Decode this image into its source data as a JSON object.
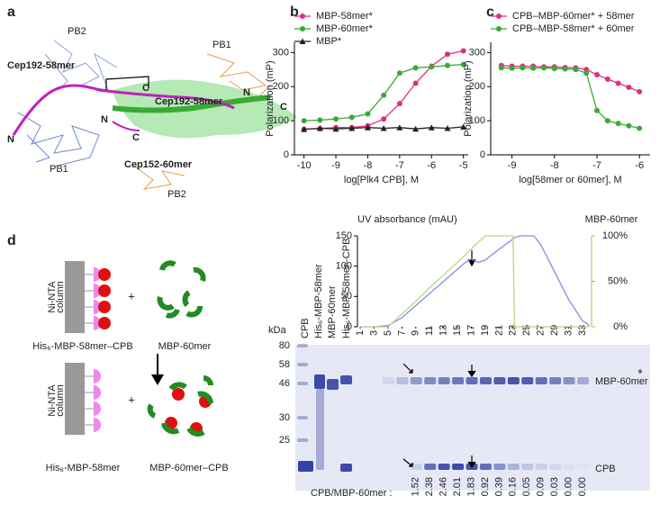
{
  "panel_labels": [
    "a",
    "b",
    "c",
    "d"
  ],
  "structure": {
    "labels": [
      "PB2",
      "PB1",
      "Cep192-58mer",
      "C",
      "Cep192-58mer",
      "N",
      "C",
      "N",
      "N",
      "C",
      "PB1",
      "Cep152-60mer",
      "PB2"
    ]
  },
  "chart_data": [
    {
      "type": "line",
      "xlabel": "log[Plk4 CPB], M",
      "ylabel": "Polarization (mP)",
      "x": [
        -10,
        -9.5,
        -9,
        -8.5,
        -8,
        -7.5,
        -7,
        -6.5,
        -6,
        -5.5,
        -5
      ],
      "xlim": [
        -10.3,
        -4.85
      ],
      "xticks": [
        -10,
        -9,
        -8,
        -7,
        -6,
        -5
      ],
      "ylim": [
        0,
        330
      ],
      "yticks": [
        0,
        100,
        200,
        300
      ],
      "legend": "above",
      "series": [
        {
          "name": "MBP-58mer*",
          "color": "#e0307f",
          "marker": "circle",
          "values": [
            75,
            77,
            80,
            80,
            85,
            105,
            150,
            210,
            260,
            295,
            305
          ]
        },
        {
          "name": "MBP-60mer*",
          "color": "#3aaa35",
          "marker": "circle",
          "values": [
            100,
            102,
            105,
            110,
            120,
            175,
            240,
            255,
            258,
            262,
            265
          ]
        },
        {
          "name": "MBP*",
          "color": "#222222",
          "marker": "triangle",
          "values": [
            75,
            78,
            76,
            78,
            80,
            78,
            80,
            76,
            80,
            78,
            82
          ]
        }
      ]
    },
    {
      "type": "line",
      "xlabel": "log[58mer or 60mer], M",
      "ylabel": "Polarization (mP)",
      "x": [
        -9.25,
        -9,
        -8.75,
        -8.5,
        -8.25,
        -8,
        -7.75,
        -7.5,
        -7.25,
        -7,
        -6.75,
        -6.5,
        -6.25,
        -6
      ],
      "xlim": [
        -9.5,
        -5.75
      ],
      "xticks": [
        -9,
        -8,
        -7,
        -6
      ],
      "ylim": [
        0,
        330
      ],
      "yticks": [
        0,
        100,
        200,
        300
      ],
      "legend": "above",
      "series": [
        {
          "name": "CPB–MBP-60mer* + 58mer",
          "color": "#e0307f",
          "marker": "circle",
          "values": [
            262,
            260,
            260,
            260,
            258,
            258,
            256,
            255,
            250,
            235,
            222,
            210,
            198,
            185
          ]
        },
        {
          "name": "CPB–MBP-58mer* + 60mer",
          "color": "#3aaa35",
          "marker": "circle",
          "values": [
            255,
            254,
            255,
            254,
            255,
            253,
            252,
            250,
            240,
            130,
            100,
            92,
            85,
            78
          ]
        }
      ]
    },
    {
      "type": "line",
      "ylabel": "UV absorbance (mAU)",
      "y2label": "MBP-60mer",
      "x": [
        1,
        3,
        5,
        7,
        9,
        11,
        13,
        15,
        16,
        17,
        18,
        19,
        21,
        23,
        23.2,
        24,
        25,
        26,
        27,
        29,
        31,
        33,
        34
      ],
      "xlim": [
        0.6,
        34.3
      ],
      "xticks": [
        1,
        3,
        5,
        7,
        9,
        11,
        13,
        15,
        17,
        19,
        21,
        23,
        25,
        27,
        29,
        31,
        33
      ],
      "ylim": [
        0,
        150
      ],
      "yticks": [
        0,
        50,
        100,
        150
      ],
      "y2lim": [
        0,
        100
      ],
      "y2ticks": [
        {
          "value": 0,
          "label": "0%"
        },
        {
          "value": 50,
          "label": "50%"
        },
        {
          "value": 100,
          "label": "100%"
        }
      ],
      "y2color": "#8cc84a",
      "series": [
        {
          "color": "#8a8ae0",
          "values": [
            0,
            0,
            2,
            15,
            35,
            55,
            75,
            95,
            105,
            112,
            106,
            110,
            128,
            145,
            147,
            150,
            150,
            150,
            135,
            90,
            45,
            10,
            2
          ]
        },
        {
          "color": "#b8d880",
          "axis": "y2",
          "values": [
            0,
            0,
            0,
            14,
            28,
            43,
            57,
            71,
            78,
            86,
            93,
            100,
            100,
            100,
            0,
            0,
            0,
            0,
            0,
            0,
            0,
            0,
            0
          ]
        }
      ]
    }
  ],
  "schematic": {
    "column": [
      "Ni-NTA",
      "column"
    ],
    "plus": "+",
    "before": [
      "His₆-MBP-58mer–CPB",
      "MBP-60mer"
    ],
    "after": [
      "His₆-MBP-58mer",
      "MBP-60mer–CPB"
    ]
  },
  "gel": {
    "unit": "kDa",
    "markers": [
      80,
      58,
      46,
      30,
      25
    ],
    "lanes": [
      "CPB",
      "His₆-MBP-58mer",
      "MBP-60mer",
      "His₆-MBP-58mer–CPB"
    ],
    "bands": [
      "MBP-60mer",
      "CPB"
    ],
    "asterisk": "*",
    "ratio_label": "CPB/MBP-60mer :",
    "ratios": [
      "1.52",
      "2.38",
      "2.46",
      "2.01",
      "1.83",
      "0.92",
      "0.39",
      "0.16",
      "0.05",
      "0.09",
      "0.03",
      "0.00",
      "0.00"
    ]
  }
}
